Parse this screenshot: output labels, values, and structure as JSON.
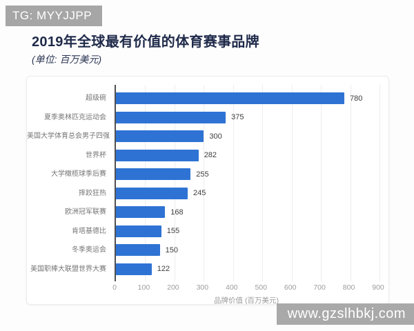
{
  "watermarks": {
    "top": "TG: MYYJJPP",
    "bottom": "www.gzslhbkj.com"
  },
  "header": {
    "title": "2019年全球最有价值的体育赛事品牌",
    "subtitle": "(单位: 百万美元)"
  },
  "chart_data": {
    "type": "bar",
    "orientation": "horizontal",
    "title": "2019年全球最有价值的体育赛事品牌",
    "unit_note": "(单位: 百万美元)",
    "categories": [
      "超级碗",
      "夏季奥林匹克运动会",
      "美国大学体育总会男子四强",
      "世界杯",
      "大学橄榄球季后赛",
      "摔跤狂热",
      "欧洲冠军联赛",
      "肯塔基德比",
      "冬季奥运会",
      "美国职棒大联盟世界大赛"
    ],
    "values": [
      780,
      375,
      300,
      282,
      255,
      245,
      168,
      155,
      150,
      122
    ],
    "xlabel": "品牌价值 (百万美元)",
    "xlim": [
      0,
      900
    ],
    "xticks": [
      0,
      100,
      200,
      300,
      400,
      500,
      600,
      700,
      800,
      900
    ],
    "grid": true,
    "legend": null,
    "bar_color": "#2e73d4"
  }
}
